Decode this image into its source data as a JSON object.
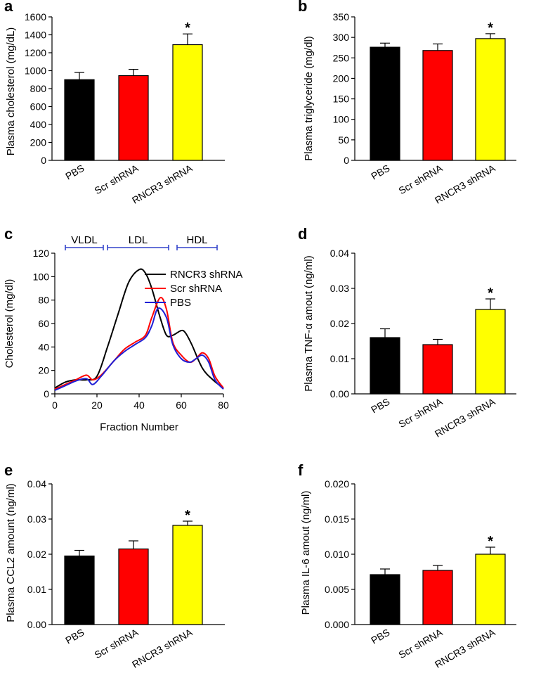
{
  "colors": {
    "black": "#000000",
    "red": "#ff0000",
    "yellow": "#ffff00",
    "blue": "#1f1fd6"
  },
  "chart_data": [
    {
      "panel": "a",
      "type": "bar",
      "categories": [
        "PBS",
        "Scr shRNA",
        "RNCR3 shRNA"
      ],
      "values": [
        900,
        945,
        1290
      ],
      "errors": [
        80,
        70,
        120
      ],
      "significance": [
        "",
        "",
        "*"
      ],
      "colors": [
        "#000000",
        "#ff0000",
        "#ffff00"
      ],
      "ylabel": "Plasma cholesterol (mg/dL)",
      "ylim": [
        0,
        1600
      ],
      "yticks": [
        "0",
        "200",
        "400",
        "600",
        "800",
        "1000",
        "1200",
        "1400",
        "1600"
      ]
    },
    {
      "panel": "b",
      "type": "bar",
      "categories": [
        "PBS",
        "Scr shRNA",
        "RNCR3 shRNA"
      ],
      "values": [
        276,
        268,
        297
      ],
      "errors": [
        10,
        16,
        12
      ],
      "significance": [
        "",
        "",
        "*"
      ],
      "colors": [
        "#000000",
        "#ff0000",
        "#ffff00"
      ],
      "ylabel": "Plasma triglyceride (mg/dl)",
      "ylim": [
        0,
        350
      ],
      "yticks": [
        "0",
        "50",
        "100",
        "150",
        "200",
        "250",
        "300",
        "350"
      ]
    },
    {
      "panel": "c",
      "type": "line",
      "xlabel": "Fraction Number",
      "ylabel": "Cholesterol (mg/dl)",
      "xlim": [
        0,
        80
      ],
      "ylim": [
        0,
        120
      ],
      "xticks": [
        "0",
        "20",
        "40",
        "60",
        "80"
      ],
      "yticks": [
        "0",
        "20",
        "40",
        "60",
        "80",
        "100",
        "120"
      ],
      "regions": [
        {
          "label": "VLDL",
          "range": [
            5,
            23
          ]
        },
        {
          "label": "LDL",
          "range": [
            25,
            54
          ]
        },
        {
          "label": "HDL",
          "range": [
            58,
            77
          ]
        }
      ],
      "series": [
        {
          "name": "RNCR3 shRNA",
          "color": "#000000",
          "x": [
            0,
            5,
            10,
            15,
            20,
            25,
            30,
            35,
            40,
            43,
            46,
            50,
            53,
            56,
            60,
            62,
            65,
            70,
            75,
            80
          ],
          "y": [
            5,
            10,
            12,
            12,
            15,
            40,
            68,
            95,
            106,
            103,
            90,
            65,
            50,
            50,
            54,
            52,
            42,
            22,
            12,
            5
          ]
        },
        {
          "name": "Scr shRNA",
          "color": "#ff0000",
          "x": [
            0,
            5,
            10,
            15,
            18,
            22,
            28,
            33,
            38,
            43,
            46,
            50,
            53,
            56,
            60,
            64,
            67,
            70,
            73,
            76,
            80
          ],
          "y": [
            4,
            8,
            12,
            16,
            12,
            16,
            28,
            38,
            44,
            50,
            65,
            82,
            72,
            44,
            33,
            27,
            30,
            35,
            30,
            15,
            5
          ]
        },
        {
          "name": "PBS",
          "color": "#1f1fd6",
          "x": [
            0,
            5,
            10,
            15,
            18,
            22,
            28,
            33,
            38,
            43,
            46,
            49,
            53,
            56,
            60,
            64,
            67,
            70,
            73,
            76,
            80
          ],
          "y": [
            3,
            7,
            11,
            13,
            8,
            15,
            28,
            36,
            42,
            48,
            58,
            73,
            65,
            42,
            30,
            27,
            30,
            33,
            27,
            12,
            4
          ]
        }
      ]
    },
    {
      "panel": "d",
      "type": "bar",
      "categories": [
        "PBS",
        "Scr shRNA",
        "RNCR3 shRNA"
      ],
      "values": [
        0.016,
        0.014,
        0.024
      ],
      "errors": [
        0.0025,
        0.0015,
        0.003
      ],
      "significance": [
        "",
        "",
        "*"
      ],
      "colors": [
        "#000000",
        "#ff0000",
        "#ffff00"
      ],
      "ylabel": "Plasma TNF-α amout (ng/ml)",
      "ylim": [
        0,
        0.04
      ],
      "yticks": [
        "0.00",
        "0.01",
        "0.02",
        "0.03",
        "0.04"
      ]
    },
    {
      "panel": "e",
      "type": "bar",
      "categories": [
        "PBS",
        "Scr shRNA",
        "RNCR3 shRNA"
      ],
      "values": [
        0.0195,
        0.0215,
        0.0282
      ],
      "errors": [
        0.0016,
        0.0023,
        0.0012
      ],
      "significance": [
        "",
        "",
        "*"
      ],
      "colors": [
        "#000000",
        "#ff0000",
        "#ffff00"
      ],
      "ylabel": "Plasma CCL2 amount (ng/ml)",
      "ylim": [
        0,
        0.04
      ],
      "yticks": [
        "0.00",
        "0.01",
        "0.02",
        "0.03",
        "0.04"
      ]
    },
    {
      "panel": "f",
      "type": "bar",
      "categories": [
        "PBS",
        "Scr shRNA",
        "RNCR3 shRNA"
      ],
      "values": [
        0.0071,
        0.0077,
        0.01
      ],
      "errors": [
        0.0008,
        0.0007,
        0.001
      ],
      "significance": [
        "",
        "",
        "*"
      ],
      "colors": [
        "#000000",
        "#ff0000",
        "#ffff00"
      ],
      "ylabel": "Plasma IL-6 amout (ng/ml)",
      "ylim": [
        0,
        0.02
      ],
      "yticks": [
        "0.000",
        "0.005",
        "0.010",
        "0.015",
        "0.020"
      ]
    }
  ]
}
